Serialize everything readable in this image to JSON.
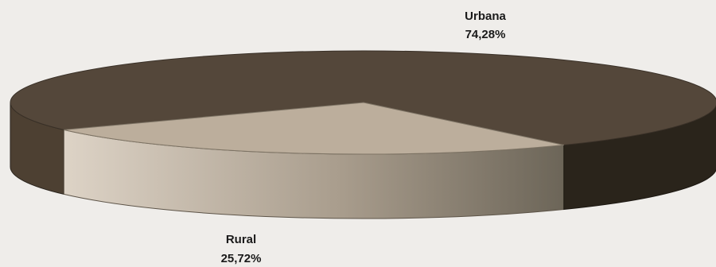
{
  "chart_data": {
    "type": "pie",
    "style": "3d",
    "slices": [
      {
        "label": "Urbana",
        "value": 74.28,
        "value_label": "74,28%",
        "color": "#54473a"
      },
      {
        "label": "Rural",
        "value": 25.72,
        "value_label": "25,72%",
        "color": "#bcae9c"
      }
    ]
  }
}
